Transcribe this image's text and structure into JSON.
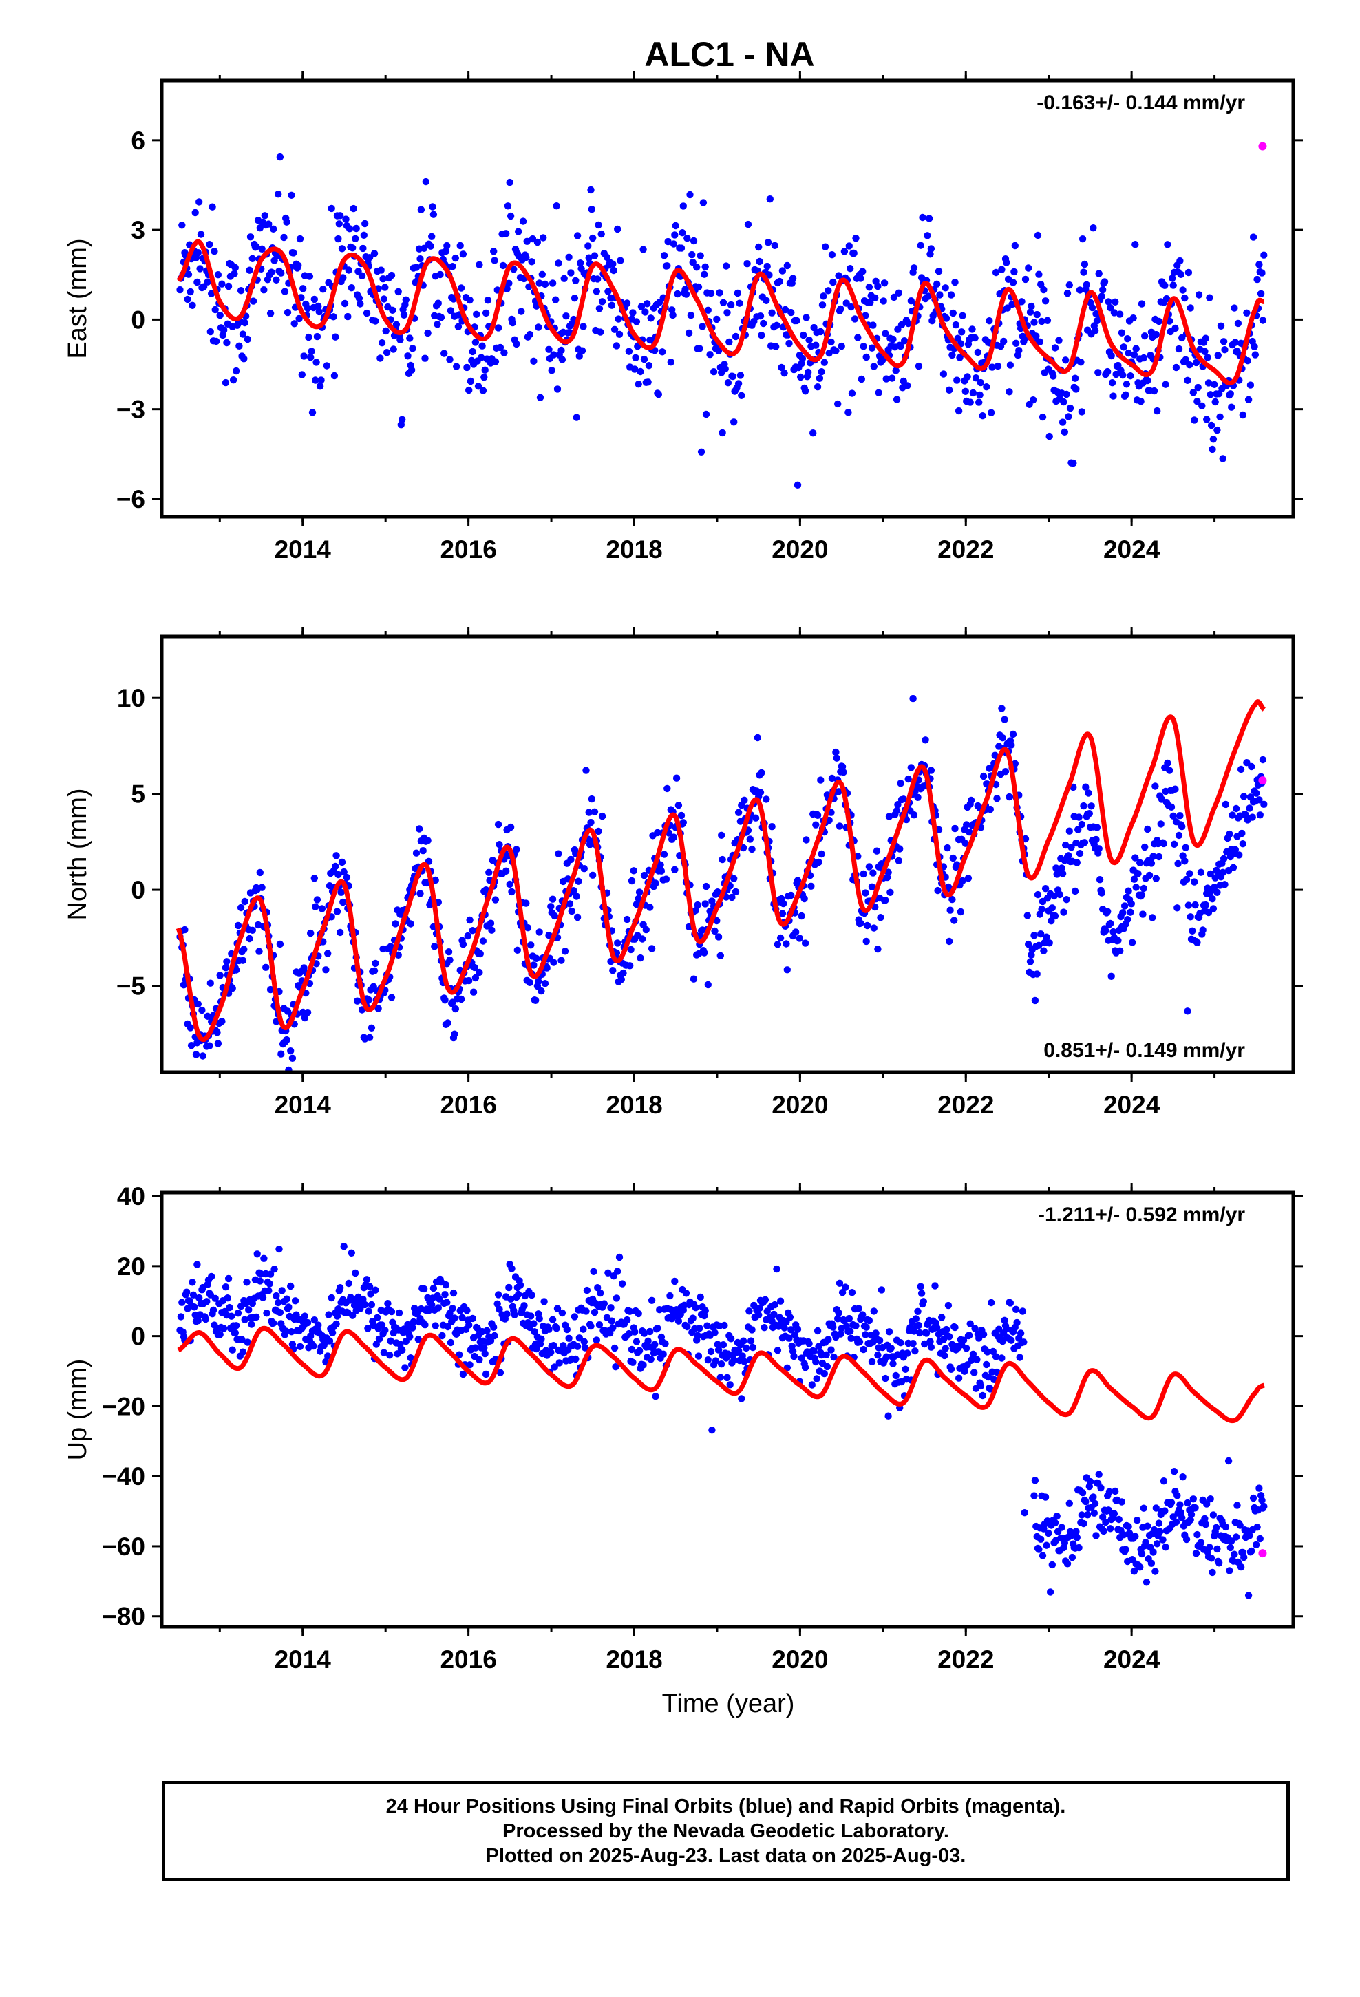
{
  "title": "ALC1 - NA",
  "xlabel": "Time (year)",
  "caption": {
    "line1": "24 Hour Positions Using Final Orbits (blue) and Rapid Orbits (magenta).",
    "line2": "Processed by the Nevada Geodetic Laboratory.",
    "line3": "Plotted on 2025-Aug-23. Last data on 2025-Aug-03."
  },
  "colors": {
    "final": "#0000ff",
    "rapid": "#ff00ff",
    "model": "#ff0000",
    "axis": "#000000"
  },
  "chart_data": [
    {
      "type": "scatter",
      "panel": "east",
      "ylabel": "East (mm)",
      "rate_text": "-0.163+/- 0.144 mm/yr",
      "rate_position": "top-right",
      "xlim": [
        2012.3,
        2025.95
      ],
      "ylim": [
        -6.6,
        8.0
      ],
      "x_ticks": [
        2014,
        2016,
        2018,
        2020,
        2022,
        2024
      ],
      "y_ticks": [
        -6,
        -3,
        0,
        3,
        6
      ],
      "y_tick_labels": [
        "−6",
        "−3",
        "0",
        "3",
        "6"
      ],
      "model": {
        "name": "model",
        "description_source": "red curve",
        "x": [
          2012.5,
          2012.75,
          2013.0,
          2013.25,
          2013.5,
          2013.75,
          2014.0,
          2014.25,
          2014.5,
          2014.75,
          2015.0,
          2015.25,
          2015.5,
          2015.75,
          2016.0,
          2016.25,
          2016.5,
          2016.75,
          2017.0,
          2017.25,
          2017.5,
          2017.75,
          2018.0,
          2018.25,
          2018.5,
          2018.75,
          2019.0,
          2019.25,
          2019.5,
          2019.75,
          2020.0,
          2020.25,
          2020.5,
          2020.75,
          2021.0,
          2021.25,
          2021.5,
          2021.75,
          2022.0,
          2022.25,
          2022.5,
          2022.75,
          2023.0,
          2023.25,
          2023.5,
          2023.75,
          2024.0,
          2024.25,
          2024.5,
          2024.75,
          2025.0,
          2025.25,
          2025.5,
          2025.6
        ],
        "y": [
          1.3,
          2.6,
          0.6,
          0.1,
          2.0,
          2.2,
          0.2,
          -0.1,
          2.0,
          1.8,
          0.0,
          -0.3,
          1.9,
          1.6,
          -0.2,
          -0.5,
          1.8,
          1.3,
          -0.3,
          -0.6,
          1.8,
          1.0,
          -0.5,
          -0.8,
          1.6,
          0.7,
          -0.7,
          -1.0,
          1.5,
          0.3,
          -0.9,
          -1.2,
          1.3,
          0.0,
          -1.1,
          -1.4,
          1.2,
          -0.3,
          -1.2,
          -1.5,
          1.0,
          -0.5,
          -1.3,
          -1.6,
          0.9,
          -0.8,
          -1.5,
          -1.7,
          0.7,
          -1.0,
          -1.7,
          -2.0,
          0.4,
          0.6
        ]
      },
      "final_envelope": {
        "description": "daily positions scatter about the model with approx. +/-2 mm spread",
        "scatter_sigma": 1.2
      },
      "rapid_points": [
        {
          "x": 2025.58,
          "y": 5.8
        }
      ]
    },
    {
      "type": "scatter",
      "panel": "north",
      "ylabel": "North (mm)",
      "rate_text": "0.851+/- 0.149 mm/yr",
      "rate_position": "bottom-right",
      "xlim": [
        2012.3,
        2025.95
      ],
      "ylim": [
        -9.5,
        13.2
      ],
      "x_ticks": [
        2014,
        2016,
        2018,
        2020,
        2022,
        2024
      ],
      "y_ticks": [
        -5,
        0,
        5,
        10
      ],
      "y_tick_labels": [
        "−5",
        "0",
        "5",
        "10"
      ],
      "model": {
        "name": "model",
        "x": [
          2012.5,
          2012.75,
          2013.0,
          2013.25,
          2013.5,
          2013.75,
          2014.0,
          2014.25,
          2014.5,
          2014.75,
          2015.0,
          2015.25,
          2015.5,
          2015.75,
          2016.0,
          2016.25,
          2016.5,
          2016.75,
          2017.0,
          2017.25,
          2017.5,
          2017.75,
          2018.0,
          2018.25,
          2018.5,
          2018.75,
          2019.0,
          2019.25,
          2019.5,
          2019.75,
          2020.0,
          2020.25,
          2020.5,
          2020.75,
          2021.0,
          2021.25,
          2021.5,
          2021.75,
          2022.0,
          2022.25,
          2022.5,
          2022.75,
          2023.0,
          2023.25,
          2023.5,
          2023.75,
          2024.0,
          2024.25,
          2024.5,
          2024.75,
          2025.0,
          2025.25,
          2025.5,
          2025.6
        ],
        "y": [
          -2.0,
          -7.6,
          -6.2,
          -2.5,
          -0.6,
          -7.0,
          -5.2,
          -2.0,
          0.3,
          -6.0,
          -4.6,
          -1.2,
          1.2,
          -5.1,
          -3.7,
          -0.3,
          2.1,
          -4.3,
          -2.7,
          0.5,
          3.0,
          -3.5,
          -1.8,
          1.3,
          3.8,
          -2.5,
          -0.9,
          2.1,
          4.6,
          -1.6,
          0.0,
          3.0,
          5.5,
          -0.9,
          0.9,
          3.9,
          6.3,
          -0.1,
          1.8,
          4.7,
          7.2,
          0.8,
          2.6,
          5.5,
          8.0,
          1.6,
          3.4,
          6.4,
          8.9,
          2.5,
          4.3,
          7.3,
          9.7,
          9.4
        ]
      },
      "final_offset_after": {
        "x": 2022.75,
        "dy": -4.2
      },
      "final_envelope": {
        "scatter_sigma": 1.1
      },
      "rapid_points": [
        {
          "x": 2025.58,
          "y": 5.7
        }
      ]
    },
    {
      "type": "scatter",
      "panel": "up",
      "ylabel": "Up (mm)",
      "rate_text": "-1.211+/- 0.592 mm/yr",
      "rate_position": "top-right",
      "xlim": [
        2012.3,
        2025.95
      ],
      "ylim": [
        -83,
        41
      ],
      "x_ticks": [
        2014,
        2016,
        2018,
        2020,
        2022,
        2024
      ],
      "y_ticks": [
        -80,
        -60,
        -40,
        -20,
        0,
        20,
        40
      ],
      "y_tick_labels": [
        "−80",
        "−60",
        "−40",
        "−20",
        "0",
        "20",
        "40"
      ],
      "model": {
        "name": "model",
        "x": [
          2012.5,
          2012.75,
          2013.0,
          2013.25,
          2013.5,
          2013.75,
          2014.0,
          2014.25,
          2014.5,
          2014.75,
          2015.0,
          2015.25,
          2015.5,
          2015.75,
          2016.0,
          2016.25,
          2016.5,
          2016.75,
          2017.0,
          2017.25,
          2017.5,
          2017.75,
          2018.0,
          2018.25,
          2018.5,
          2018.75,
          2019.0,
          2019.25,
          2019.5,
          2019.75,
          2020.0,
          2020.25,
          2020.5,
          2020.75,
          2021.0,
          2021.25,
          2021.5,
          2021.75,
          2022.0,
          2022.25,
          2022.5,
          2022.75,
          2023.0,
          2023.25,
          2023.5,
          2023.75,
          2024.0,
          2024.25,
          2024.5,
          2024.75,
          2025.0,
          2025.25,
          2025.5,
          2025.6
        ],
        "y": [
          -4,
          1,
          -5,
          -9,
          2,
          -2,
          -8,
          -11,
          1,
          -3,
          -9,
          -12,
          0,
          -4,
          -10,
          -13,
          -1,
          -5,
          -11,
          -14,
          -3,
          -6,
          -12,
          -15,
          -4,
          -8,
          -13,
          -16,
          -5,
          -9,
          -14,
          -17,
          -6,
          -10,
          -16,
          -19,
          -7,
          -12,
          -17,
          -20,
          -8,
          -13,
          -19,
          -22,
          -10,
          -15,
          -20,
          -23,
          -11,
          -16,
          -21,
          -24,
          -16,
          -14
        ]
      },
      "final_offset_after": {
        "x": 2022.7,
        "dy": -48
      },
      "final_envelope": {
        "scatter_sigma": 5.0,
        "offset_above_model": 11
      },
      "rapid_points": [
        {
          "x": 2025.58,
          "y": -62
        }
      ]
    }
  ]
}
